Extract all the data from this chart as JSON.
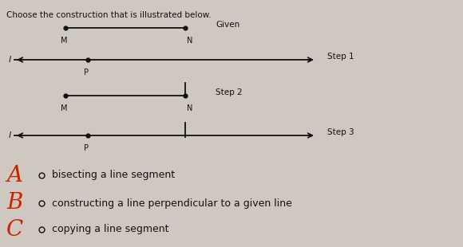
{
  "title": "Choose the construction that is illustrated below.",
  "bg_color": "#cec8c0",
  "given_label": "Given",
  "step1_label": "Step 1",
  "step2_label": "Step 2",
  "step3_label": "Step 3",
  "choices": [
    {
      "letter": "A",
      "text": "bisecting a line segment"
    },
    {
      "letter": "B",
      "text": "constructing a line perpendicular to a given line"
    },
    {
      "letter": "C",
      "text": "copying a line segment"
    }
  ],
  "choice_color": "#cc2200",
  "text_color": "#111111",
  "line_color": "#111111",
  "dot_color": "#111111",
  "figw": 5.8,
  "figh": 3.1,
  "dpi": 100
}
